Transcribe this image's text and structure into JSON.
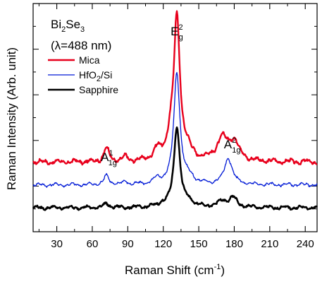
{
  "chart_data": {
    "type": "line",
    "xlabel": "Raman Shift (cm",
    "xlabel_sup": "-1",
    "xlabel_end": ")",
    "ylabel": "Raman Intensity (Arb. unit)",
    "xlim": [
      10,
      250
    ],
    "ylim": [
      0,
      1
    ],
    "x_ticks": [
      30,
      60,
      90,
      120,
      150,
      180,
      210,
      240
    ],
    "y_ticks_labeled": false,
    "grid": false,
    "legend_position": "top-left",
    "sample": {
      "main1": "Bi",
      "sub1": "2",
      "main2": "Se",
      "sub2": "3"
    },
    "wavelength": "(λ=488 nm)",
    "peaks": [
      {
        "main": "A",
        "sup": "1",
        "sub": "1g",
        "x": 72
      },
      {
        "main": "E",
        "sup": "2",
        "sub": "g",
        "x": 131
      },
      {
        "main": "A",
        "sup": "2",
        "sub": "1g",
        "x": 176
      }
    ],
    "series": [
      {
        "name": "Mica",
        "legend_main": "Mica",
        "legend_sub": "",
        "legend_rest": "",
        "color": "#e8001c",
        "stroke": 2.4,
        "baseline": 0.305,
        "peaks": [
          [
            72,
            0.06,
            2.6
          ],
          [
            88,
            0.018,
            2.5
          ],
          [
            115,
            0.045,
            4
          ],
          [
            126,
            0.07,
            3.5
          ],
          [
            131.5,
            0.62,
            3.1
          ],
          [
            140,
            0.04,
            5
          ],
          [
            170,
            0.095,
            6
          ],
          [
            180,
            0.08,
            5
          ]
        ],
        "ripple": 0.007
      },
      {
        "name": "HfO2/Si",
        "legend_main": "HfO",
        "legend_sub": "2",
        "legend_rest": "/Si",
        "color": "#0019d6",
        "stroke": 1.3,
        "baseline": 0.205,
        "peaks": [
          [
            72,
            0.04,
            2.6
          ],
          [
            88,
            0.012,
            2.5
          ],
          [
            115,
            0.02,
            4
          ],
          [
            131.5,
            0.49,
            3.1
          ],
          [
            142,
            0.025,
            5
          ],
          [
            175,
            0.115,
            4
          ]
        ],
        "ripple": 0.005
      },
      {
        "name": "Sapphire",
        "legend_main": "Sapphire",
        "legend_sub": "",
        "legend_rest": "",
        "color": "#000000",
        "stroke": 2.6,
        "baseline": 0.105,
        "peaks": [
          [
            72,
            0.018,
            2.6
          ],
          [
            119,
            0.012,
            4
          ],
          [
            131.5,
            0.355,
            3.0
          ],
          [
            142,
            0.02,
            5
          ],
          [
            170,
            0.025,
            5
          ],
          [
            179,
            0.04,
            4
          ]
        ],
        "ripple": 0.005
      }
    ]
  }
}
